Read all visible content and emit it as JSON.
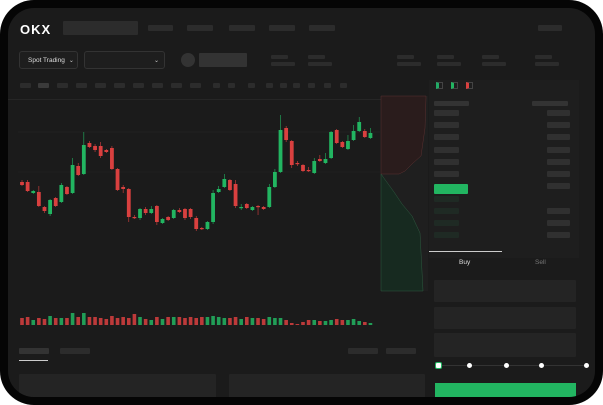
{
  "header": {
    "logo": "OKX"
  },
  "toolbar": {
    "market_dropdown": "Spot Trading",
    "chevron": "chevron-down-icon"
  },
  "order_panel": {
    "tabs": [
      {
        "label": "Buy",
        "active": true
      },
      {
        "label": "Sell",
        "active": false
      }
    ],
    "slider_level_percent": 0
  },
  "colors": {
    "up": "#22b561",
    "down": "#d9403f",
    "background": "#1b1b1b"
  },
  "chart_data": {
    "type": "candlestick",
    "candles": [
      [
        68,
        65,
        70,
        64
      ],
      [
        68,
        59,
        70,
        58
      ],
      [
        57,
        59,
        60,
        56
      ],
      [
        58,
        44,
        64,
        43
      ],
      [
        43,
        39,
        44,
        37
      ],
      [
        36,
        50,
        51,
        34
      ],
      [
        52,
        44,
        53,
        43
      ],
      [
        48,
        65,
        67,
        47
      ],
      [
        63,
        56,
        64,
        55
      ],
      [
        57,
        85,
        92,
        56
      ],
      [
        84,
        75,
        87,
        74
      ],
      [
        76,
        105,
        118,
        75
      ],
      [
        107,
        103,
        109,
        102
      ],
      [
        104,
        100,
        106,
        98
      ],
      [
        104,
        94,
        108,
        92
      ],
      [
        100,
        98,
        101,
        97
      ],
      [
        102,
        81,
        104,
        80
      ],
      [
        81,
        60,
        82,
        59
      ],
      [
        63,
        61,
        65,
        57
      ],
      [
        61,
        33,
        62,
        28
      ],
      [
        33,
        32,
        35,
        31
      ],
      [
        32,
        41,
        42,
        30
      ],
      [
        41,
        37,
        43,
        35
      ],
      [
        37,
        41,
        44,
        36
      ],
      [
        44,
        28,
        45,
        25
      ],
      [
        27,
        31,
        32,
        26
      ],
      [
        33,
        30,
        34,
        29
      ],
      [
        32,
        40,
        41,
        31
      ],
      [
        40,
        38,
        42,
        37
      ],
      [
        41,
        32,
        42,
        30
      ],
      [
        41,
        33,
        42,
        31
      ],
      [
        32,
        21,
        34,
        19
      ],
      [
        22,
        21,
        23,
        20
      ],
      [
        21,
        28,
        29,
        20
      ],
      [
        28,
        57,
        60,
        26
      ],
      [
        58,
        61,
        64,
        57
      ],
      [
        63,
        71,
        76,
        62
      ],
      [
        70,
        60,
        71,
        59
      ],
      [
        66,
        44,
        70,
        42
      ],
      [
        43,
        43,
        46,
        40
      ],
      [
        46,
        42,
        47,
        41
      ],
      [
        40,
        43,
        44,
        39
      ],
      [
        44,
        43,
        45,
        35
      ],
      [
        43,
        41,
        44,
        40
      ],
      [
        43,
        63,
        66,
        42
      ],
      [
        63,
        78,
        81,
        62
      ],
      [
        78,
        120,
        135,
        77
      ],
      [
        122,
        110,
        124,
        108
      ],
      [
        109,
        85,
        110,
        82
      ],
      [
        87,
        86,
        89,
        84
      ],
      [
        85,
        79,
        86,
        78
      ],
      [
        80,
        79,
        83,
        78
      ],
      [
        77,
        89,
        92,
        76
      ],
      [
        91,
        89,
        95,
        88
      ],
      [
        87,
        91,
        97,
        86
      ],
      [
        92,
        118,
        119,
        91
      ],
      [
        120,
        107,
        121,
        106
      ],
      [
        108,
        103,
        109,
        102
      ],
      [
        101,
        109,
        115,
        100
      ],
      [
        110,
        119,
        125,
        109
      ],
      [
        119,
        128,
        133,
        118
      ],
      [
        119,
        113,
        121,
        112
      ],
      [
        112,
        117,
        122,
        111
      ]
    ],
    "volumes": [
      7,
      8,
      5,
      7,
      6,
      9,
      7,
      7,
      7,
      12,
      8,
      12,
      8,
      8,
      7,
      6,
      9,
      7,
      8,
      7,
      11,
      8,
      6,
      5,
      8,
      6,
      8,
      8,
      8,
      7,
      8,
      7,
      8,
      8,
      9,
      8,
      7,
      7,
      8,
      6,
      8,
      7,
      7,
      6,
      8,
      7,
      7,
      5,
      2,
      1,
      3,
      5,
      5,
      4,
      4,
      5,
      6,
      5,
      5,
      6,
      4,
      3,
      2
    ]
  }
}
